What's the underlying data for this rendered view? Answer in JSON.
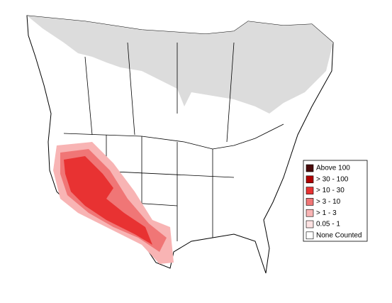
{
  "legend": {
    "items": [
      {
        "label": "Above 100",
        "color": "#4a0a0a"
      },
      {
        "label": "> 30 - 100",
        "color": "#b00000"
      },
      {
        "label": "> 10 - 30",
        "color": "#e83232"
      },
      {
        "label": "> 3 - 10",
        "color": "#f07676"
      },
      {
        "label": "> 1 - 3",
        "color": "#f8b4b4"
      },
      {
        "label": "0.05 - 1",
        "color": "#fde2e2"
      },
      {
        "label": "None Counted",
        "color": "#ffffff"
      }
    ]
  }
}
